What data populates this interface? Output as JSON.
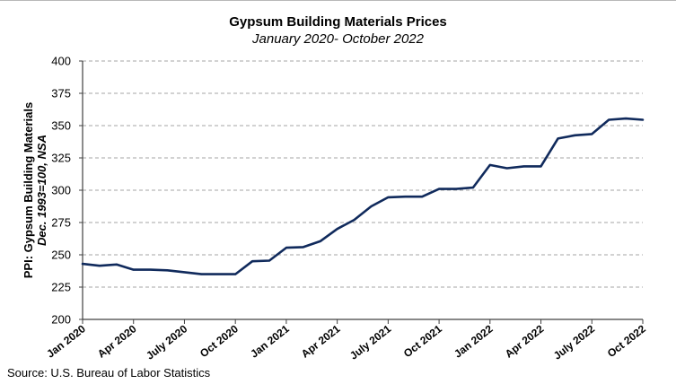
{
  "chart_data": {
    "type": "line",
    "title": "Gypsum Building Materials Prices",
    "subtitle": "January 2020- October 2022",
    "ylabel_line1": "PPI: Gypsum Building Materials",
    "ylabel_line2": "Dec. 1993=100, NSA",
    "xlabel": "",
    "ylim": [
      200,
      400
    ],
    "yticks": [
      "200",
      "225",
      "250",
      "275",
      "300",
      "325",
      "350",
      "375",
      "400"
    ],
    "ytick_values": [
      200,
      225,
      250,
      275,
      300,
      325,
      350,
      375,
      400
    ],
    "xtick_labels": [
      "Jan 2020",
      "Apr 2020",
      "July 2020",
      "Oct 2020",
      "Jan 2021",
      "Apr 2021",
      "July 2021",
      "Oct 2021",
      "Jan 2022",
      "Apr 2022",
      "July 2022",
      "Oct 2022"
    ],
    "xtick_month_index": [
      0,
      3,
      6,
      9,
      12,
      15,
      18,
      21,
      24,
      27,
      30,
      33
    ],
    "grid": "horizontal-dashed",
    "legend": "none",
    "series": [
      {
        "name": "PPI: Gypsum Building Materials",
        "color": "#102a5c",
        "x": [
          "2020-01",
          "2020-02",
          "2020-03",
          "2020-04",
          "2020-05",
          "2020-06",
          "2020-07",
          "2020-08",
          "2020-09",
          "2020-10",
          "2020-11",
          "2020-12",
          "2021-01",
          "2021-02",
          "2021-03",
          "2021-04",
          "2021-05",
          "2021-06",
          "2021-07",
          "2021-08",
          "2021-09",
          "2021-10",
          "2021-11",
          "2021-12",
          "2022-01",
          "2022-02",
          "2022-03",
          "2022-04",
          "2022-05",
          "2022-06",
          "2022-07",
          "2022-08",
          "2022-09",
          "2022-10"
        ],
        "values": [
          243,
          241.5,
          242.5,
          238.5,
          238.5,
          238,
          236.5,
          235,
          235,
          235,
          245,
          245.5,
          255.5,
          256,
          260.5,
          270,
          277,
          287.5,
          294.5,
          295,
          295,
          301,
          301,
          302,
          319.5,
          317,
          318.5,
          318.5,
          340,
          342.5,
          343.5,
          354.5,
          355.5,
          354.5
        ]
      }
    ]
  },
  "source": "Source: U.S. Bureau of Labor Statistics",
  "colors": {
    "grid": "#a6a6a6",
    "axis": "#404040"
  }
}
